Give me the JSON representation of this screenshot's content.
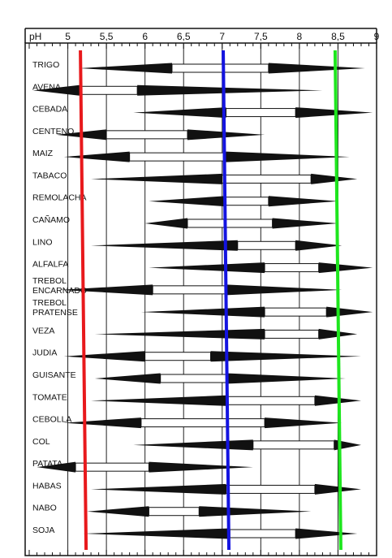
{
  "chart_data": {
    "type": "range",
    "title": "",
    "xlabel": "pH",
    "ylabel": "",
    "xlim": [
      4.5,
      9.0
    ],
    "x_ticks": [
      "5",
      "5,5",
      "6",
      "6,5",
      "7",
      "7,5",
      "8",
      "8,5",
      "9"
    ],
    "x_tick_values": [
      5,
      5.5,
      6,
      6.5,
      7,
      7.5,
      8,
      8.5,
      9
    ],
    "grid": true,
    "reference_lines": [
      {
        "x": 5.2,
        "color": "#e8191c"
      },
      {
        "x": 7.05,
        "color": "#1414e0"
      },
      {
        "x": 8.5,
        "color": "#1ee61e"
      }
    ],
    "crops": [
      {
        "label": [
          "TRIGO"
        ],
        "range": [
          5.15,
          8.85
        ],
        "optimal": [
          6.35,
          7.6
        ]
      },
      {
        "label": [
          "AVENA"
        ],
        "range": [
          4.55,
          8.3
        ],
        "optimal": [
          5.15,
          5.9
        ]
      },
      {
        "label": [
          "CEBADA"
        ],
        "range": [
          5.85,
          8.95
        ],
        "optimal": [
          7.05,
          7.95
        ]
      },
      {
        "label": [
          "CENTENO"
        ],
        "range": [
          4.85,
          7.55
        ],
        "optimal": [
          5.5,
          6.55
        ]
      },
      {
        "label": [
          "MAIZ"
        ],
        "range": [
          4.95,
          8.65
        ],
        "optimal": [
          5.8,
          7.05
        ]
      },
      {
        "label": [
          "TABACO"
        ],
        "range": [
          5.3,
          8.75
        ],
        "optimal": [
          7.0,
          8.15
        ]
      },
      {
        "label": [
          "REMOLACHA"
        ],
        "range": [
          6.05,
          8.5
        ],
        "optimal": [
          7.05,
          7.6
        ]
      },
      {
        "label": [
          "CAÑAMO"
        ],
        "range": [
          6.0,
          8.5
        ],
        "optimal": [
          6.55,
          7.65
        ]
      },
      {
        "label": [
          "LINO"
        ],
        "range": [
          5.3,
          8.55
        ],
        "optimal": [
          7.2,
          7.95
        ]
      },
      {
        "label": [
          "ALFALFA"
        ],
        "range": [
          6.05,
          8.95
        ],
        "optimal": [
          7.55,
          8.25
        ]
      },
      {
        "label": [
          "TREBOL",
          "ENCARNADO"
        ],
        "range": [
          4.9,
          8.55
        ],
        "optimal": [
          6.1,
          7.05
        ]
      },
      {
        "label": [
          "TREBOL",
          "PRATENSE"
        ],
        "range": [
          5.95,
          8.95
        ],
        "optimal": [
          7.55,
          8.35
        ]
      },
      {
        "label": [
          "VEZA"
        ],
        "range": [
          5.35,
          8.75
        ],
        "optimal": [
          7.55,
          8.25
        ]
      },
      {
        "label": [
          "JUDIA"
        ],
        "range": [
          4.95,
          8.8
        ],
        "optimal": [
          6.0,
          6.85
        ]
      },
      {
        "label": [
          "GUISANTE"
        ],
        "range": [
          5.35,
          8.6
        ],
        "optimal": [
          6.2,
          7.05
        ]
      },
      {
        "label": [
          "TOMATE"
        ],
        "range": [
          5.3,
          8.8
        ],
        "optimal": [
          7.05,
          8.2
        ]
      },
      {
        "label": [
          "CEBOLLA"
        ],
        "range": [
          4.95,
          8.55
        ],
        "optimal": [
          5.95,
          7.55
        ]
      },
      {
        "label": [
          "COL"
        ],
        "range": [
          5.85,
          8.8
        ],
        "optimal": [
          7.4,
          8.45
        ]
      },
      {
        "label": [
          "PATATA"
        ],
        "range": [
          4.6,
          7.4
        ],
        "optimal": [
          5.1,
          6.05
        ]
      },
      {
        "label": [
          "HABAS"
        ],
        "range": [
          5.3,
          8.8
        ],
        "optimal": [
          7.05,
          8.2
        ]
      },
      {
        "label": [
          "NABO"
        ],
        "range": [
          5.25,
          8.15
        ],
        "optimal": [
          6.05,
          6.7
        ]
      },
      {
        "label": [
          "SOJA"
        ],
        "range": [
          5.2,
          8.75
        ],
        "optimal": [
          7.1,
          7.95
        ]
      }
    ]
  }
}
